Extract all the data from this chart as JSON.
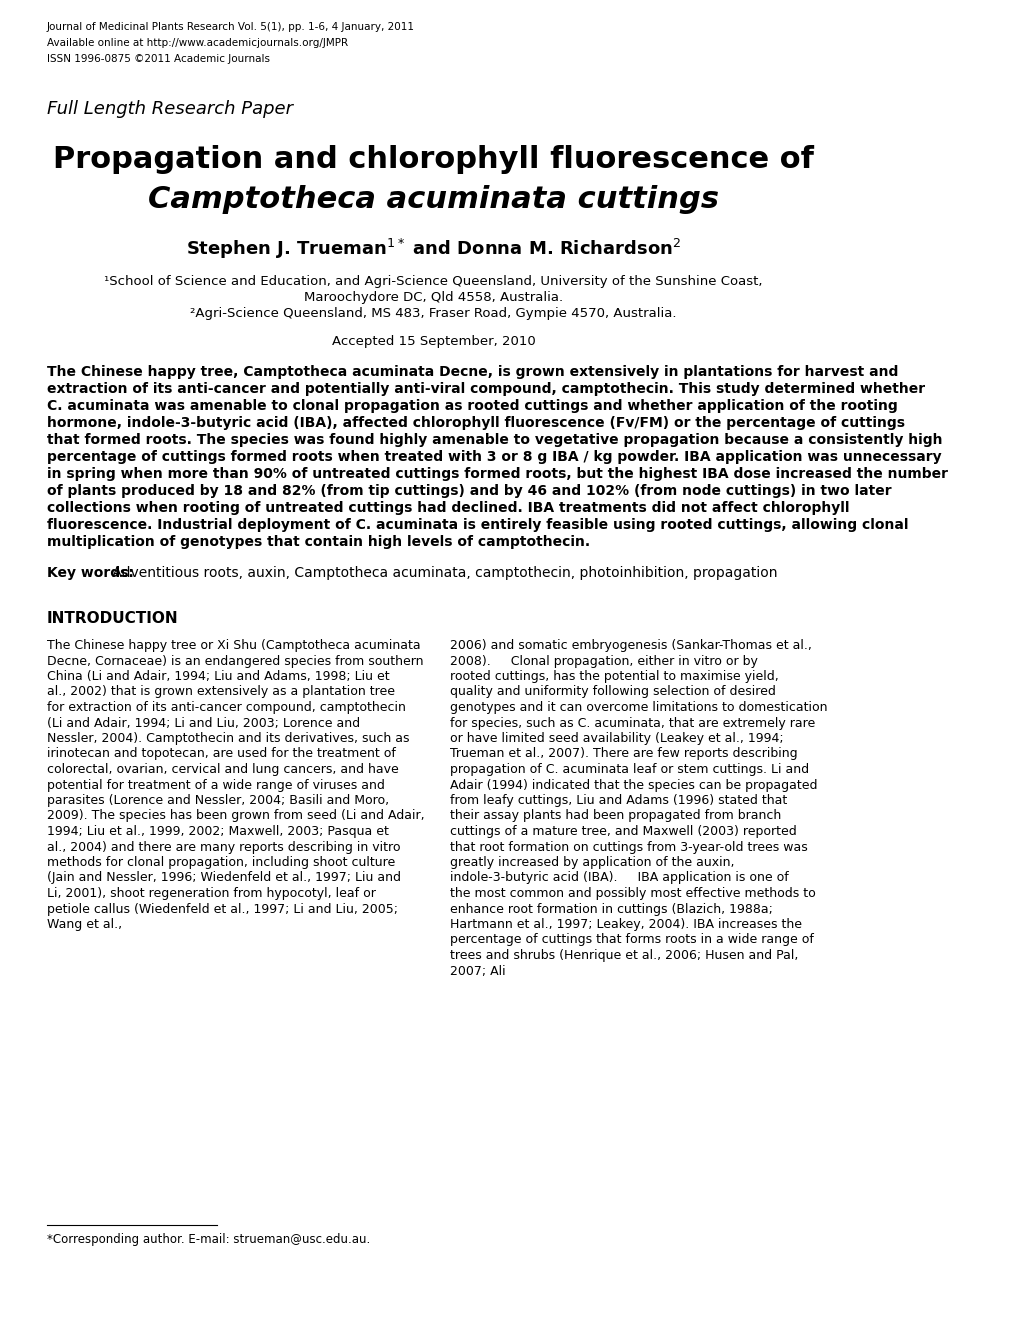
{
  "background_color": "#ffffff",
  "header_line1": "Journal of Medicinal Plants Research Vol. 5(1), pp. 1-6, 4 January, 2011",
  "header_line2": "Available online at http://www.academicjournals.org/JMPR",
  "header_line3": "ISSN 1996-0875 ©2011 Academic Journals",
  "full_length_label": "Full Length Research Paper",
  "title_line1": "Propagation and chlorophyll fluorescence of",
  "title_line2_normal": " cuttings",
  "title_line2_italic": "Camptotheca acuminata",
  "authors": "Stephen J. Trueman",
  "authors_super1": "1*",
  "authors_mid": " and Donna M. Richardson",
  "authors_super2": "2",
  "affil1": "¹School of Science and Education, and Agri-Science Queensland, University of the Sunshine Coast,",
  "affil2": "Maroochydore DC, Qld 4558, Australia.",
  "affil3": "²Agri-Science Queensland, MS 483, Fraser Road, Gympie 4570, Australia.",
  "accepted": "Accepted 15 September, 2010",
  "abstract_text": "The Chinese happy tree, Camptotheca acuminata Decne, is grown extensively in plantations for harvest and extraction of its anti-cancer and potentially anti-viral compound, camptothecin. This study determined whether C. acuminata was amenable to clonal propagation as rooted cuttings and whether application of the rooting hormone, indole-3-butyric acid (IBA), affected chlorophyll fluorescence (Fv/FM) or the percentage of cuttings that formed roots. The species was found highly amenable to vegetative propagation because a consistently high percentage of cuttings formed roots when treated with 3 or 8 g IBA / kg powder. IBA application was unnecessary in spring when more than 90% of untreated cuttings formed roots, but the highest IBA dose increased the number of plants produced by 18 and 82% (from tip cuttings) and by 46 and 102% (from node cuttings) in two later collections when rooting of untreated cuttings had declined. IBA treatments did not affect chlorophyll fluorescence. Industrial deployment of C. acuminata is entirely feasible using rooted cuttings, allowing clonal multiplication of genotypes that contain high levels of camptothecin.",
  "keywords_bold": "Key words:",
  "keywords_rest": " Adventitious roots, auxin, Camptotheca acuminata, camptothecin, photoinhibition, propagation",
  "intro_heading": "INTRODUCTION",
  "intro_col1": "The Chinese happy tree or Xi Shu (Camptotheca acuminata Decne, Cornaceae) is an endangered species from southern China (Li and Adair, 1994; Liu and Adams, 1998; Liu et al., 2002) that is grown extensively as a plantation tree for extraction of its anti-cancer compound, camptothecin (Li and Adair, 1994; Li and Liu, 2003; Lorence and Nessler, 2004). Camptothecin and its derivatives, such as irinotecan and topotecan, are used for the treatment of colorectal, ovarian, cervical and lung cancers, and have potential for treatment of a wide range of viruses and parasites (Lorence and Nessler, 2004; Basili and Moro, 2009). The species has been grown from seed (Li and Adair, 1994; Liu et al., 1999, 2002; Maxwell, 2003; Pasqua et al., 2004) and there are many reports describing in vitro methods for clonal propagation, including shoot culture (Jain and Nessler, 1996; Wiedenfeld et al., 1997; Liu and Li, 2001), shoot regeneration from hypocotyl, leaf or petiole callus (Wiedenfeld et al., 1997; Li and Liu, 2005; Wang et al.,",
  "intro_col2": "2006) and somatic embryogenesis (Sankar-Thomas et al., 2008).\n    Clonal propagation, either in vitro or by rooted cuttings, has the potential to maximise yield, quality and uniformity following selection of desired genotypes and it can overcome limitations to domestication for species, such as C. acuminata, that are extremely rare or have limited seed availability (Leakey et al., 1994; Trueman et al., 2007). There are few reports describing propagation of C. acuminata leaf or stem cuttings. Li and Adair (1994) indicated that the species can be propagated from leafy cuttings, Liu and Adams (1996) stated that their assay plants had been propagated from branch cuttings of a mature tree, and Maxwell (2003) reported that root formation on cuttings from 3-year-old trees was greatly increased by application of the auxin, indole-3-butyric acid (IBA).\n    IBA application is one of the most common and possibly most effective methods to enhance root formation in cuttings (Blazich, 1988a; Hartmann et al., 1997; Leakey, 2004). IBA increases the percentage of cuttings that forms roots in a wide range of trees and shrubs (Henrique et al., 2006; Husen and Pal, 2007; Ali",
  "footer_line": "*Corresponding author. E-mail: strueman@usc.edu.au."
}
